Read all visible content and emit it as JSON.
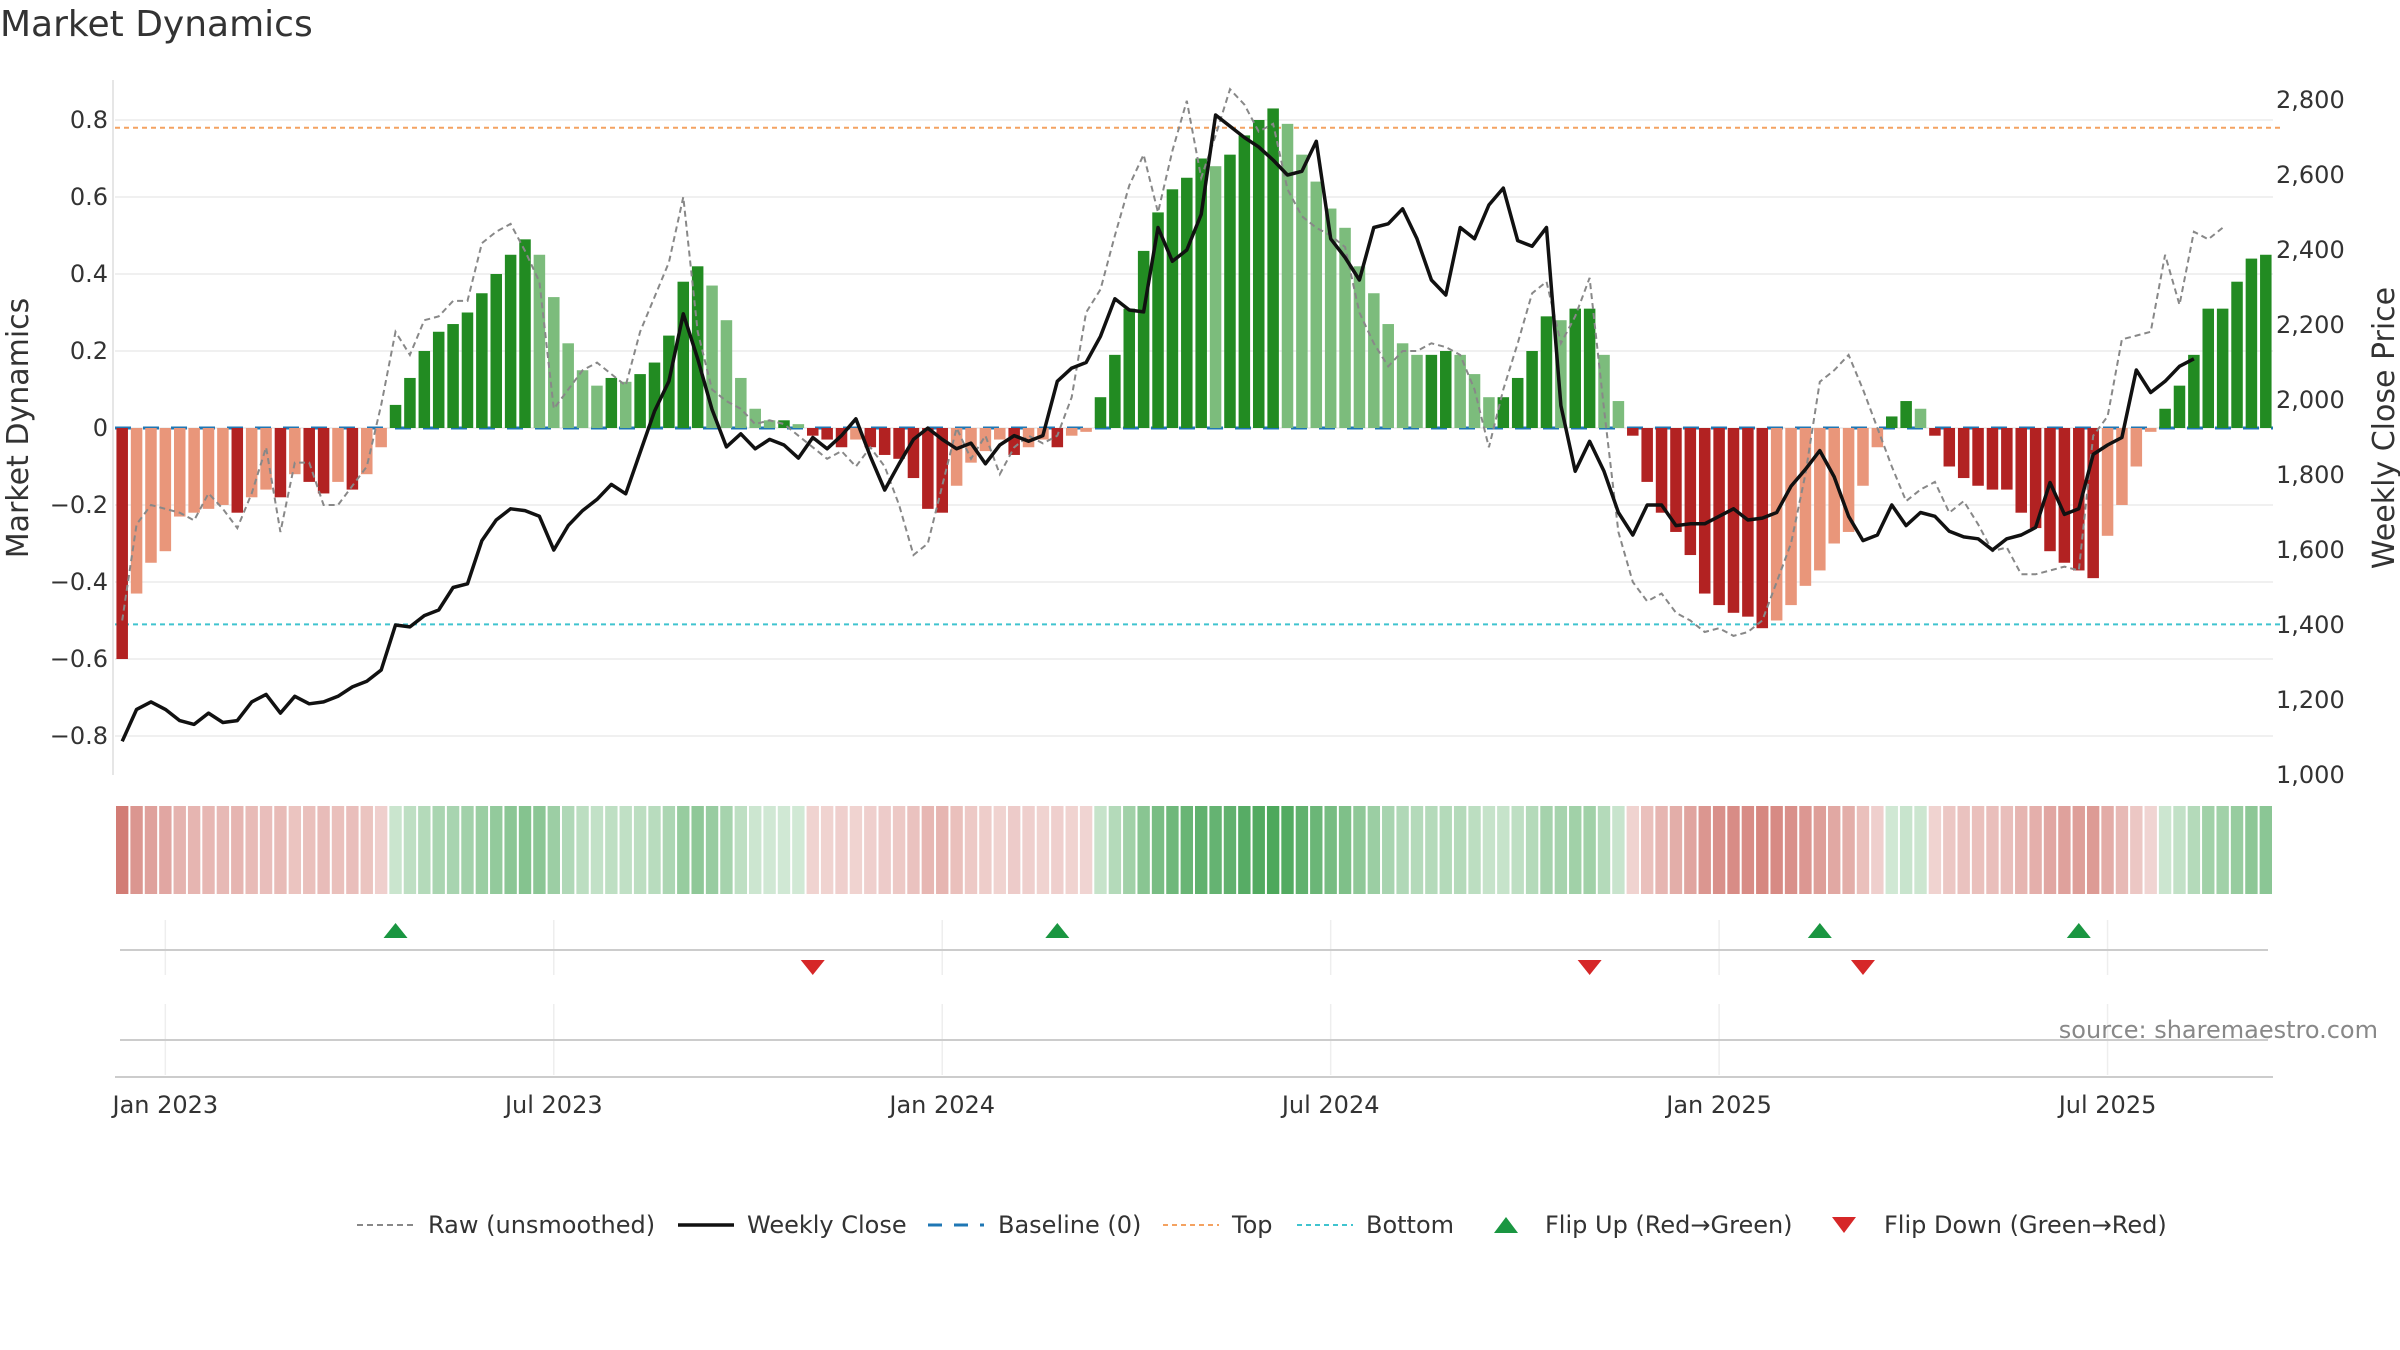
{
  "title": "Market Dynamics",
  "source": "source: sharemaestro.com",
  "chart_data": {
    "type": "bar",
    "title": "Market Dynamics",
    "ylabel_left": "Market Dynamics",
    "ylabel_right": "Weekly Close Price",
    "ylim_left": [
      -0.9,
      0.9
    ],
    "ylim_right": [
      1000,
      2850
    ],
    "left_ticks": [
      "0.8",
      "0.6",
      "0.4",
      "0.2",
      "0",
      "−0.2",
      "−0.4",
      "−0.6",
      "−0.8"
    ],
    "left_tick_values": [
      0.8,
      0.6,
      0.4,
      0.2,
      0,
      -0.2,
      -0.4,
      -0.6,
      -0.8
    ],
    "right_ticks": [
      "2,800",
      "2,600",
      "2,400",
      "2,200",
      "2,000",
      "1,800",
      "1,600",
      "1,400",
      "1,200",
      "1,000"
    ],
    "right_tick_values": [
      2800,
      2600,
      2400,
      2200,
      2000,
      1800,
      1600,
      1400,
      1200,
      1000
    ],
    "x_ticks": [
      "Jan 2023",
      "Jul 2023",
      "Jan 2024",
      "Jul 2024",
      "Jan 2025",
      "Jul 2025"
    ],
    "x_tick_weeks": [
      3,
      30,
      57,
      84,
      111,
      138
    ],
    "top_line": 0.78,
    "bottom_line": -0.51,
    "dynamics": [
      -0.6,
      -0.43,
      -0.35,
      -0.32,
      -0.23,
      -0.22,
      -0.21,
      -0.2,
      -0.22,
      -0.18,
      -0.16,
      -0.18,
      -0.12,
      -0.14,
      -0.17,
      -0.14,
      -0.16,
      -0.12,
      -0.05,
      0.06,
      0.13,
      0.2,
      0.25,
      0.27,
      0.3,
      0.35,
      0.4,
      0.45,
      0.49,
      0.45,
      0.34,
      0.22,
      0.15,
      0.11,
      0.13,
      0.12,
      0.14,
      0.17,
      0.24,
      0.38,
      0.42,
      0.37,
      0.28,
      0.13,
      0.05,
      0.02,
      0.02,
      0.01,
      -0.02,
      -0.03,
      -0.05,
      -0.03,
      -0.05,
      -0.07,
      -0.08,
      -0.13,
      -0.21,
      -0.22,
      -0.15,
      -0.09,
      -0.06,
      -0.03,
      -0.07,
      -0.05,
      -0.03,
      -0.05,
      -0.02,
      -0.01,
      0.08,
      0.19,
      0.31,
      0.46,
      0.56,
      0.62,
      0.65,
      0.7,
      0.68,
      0.71,
      0.76,
      0.8,
      0.83,
      0.79,
      0.71,
      0.64,
      0.57,
      0.52,
      0.42,
      0.35,
      0.27,
      0.22,
      0.19,
      0.19,
      0.2,
      0.19,
      0.14,
      0.08,
      0.08,
      0.13,
      0.2,
      0.29,
      0.28,
      0.31,
      0.31,
      0.19,
      0.07,
      -0.02,
      -0.14,
      -0.22,
      -0.27,
      -0.33,
      -0.43,
      -0.46,
      -0.48,
      -0.49,
      -0.52,
      -0.5,
      -0.46,
      -0.41,
      -0.37,
      -0.3,
      -0.27,
      -0.15,
      -0.05,
      0.03,
      0.07,
      0.05,
      -0.02,
      -0.1,
      -0.13,
      -0.15,
      -0.16,
      -0.16,
      -0.22,
      -0.26,
      -0.32,
      -0.35,
      -0.37,
      -0.39,
      -0.28,
      -0.2,
      -0.1,
      -0.01,
      0.05,
      0.11,
      0.19,
      0.31,
      0.31,
      0.38,
      0.44,
      0.45
    ],
    "raw": [
      -0.5,
      -0.25,
      -0.2,
      -0.21,
      -0.22,
      -0.24,
      -0.17,
      -0.21,
      -0.26,
      -0.17,
      -0.05,
      -0.27,
      -0.09,
      -0.09,
      -0.2,
      -0.2,
      -0.15,
      -0.1,
      0.06,
      0.25,
      0.19,
      0.28,
      0.29,
      0.33,
      0.33,
      0.48,
      0.51,
      0.53,
      0.46,
      0.38,
      0.05,
      0.1,
      0.15,
      0.17,
      0.14,
      0.11,
      0.25,
      0.34,
      0.43,
      0.6,
      0.25,
      0.1,
      0.07,
      0.05,
      0.01,
      0.02,
      0.01,
      -0.02,
      -0.05,
      -0.08,
      -0.06,
      -0.1,
      -0.05,
      -0.1,
      -0.2,
      -0.33,
      -0.3,
      -0.15,
      0.0,
      -0.08,
      -0.02,
      -0.12,
      -0.05,
      -0.02,
      -0.04,
      -0.02,
      0.08,
      0.3,
      0.36,
      0.5,
      0.63,
      0.71,
      0.56,
      0.72,
      0.85,
      0.65,
      0.76,
      0.88,
      0.84,
      0.77,
      0.79,
      0.62,
      0.55,
      0.52,
      0.5,
      0.47,
      0.3,
      0.22,
      0.16,
      0.2,
      0.2,
      0.22,
      0.21,
      0.19,
      0.1,
      -0.05,
      0.1,
      0.22,
      0.35,
      0.38,
      0.22,
      0.29,
      0.39,
      0.05,
      -0.27,
      -0.4,
      -0.45,
      -0.43,
      -0.48,
      -0.5,
      -0.53,
      -0.52,
      -0.54,
      -0.53,
      -0.5,
      -0.4,
      -0.3,
      -0.12,
      0.12,
      0.15,
      0.19,
      0.1,
      0.0,
      -0.1,
      -0.19,
      -0.16,
      -0.14,
      -0.22,
      -0.19,
      -0.25,
      -0.32,
      -0.31,
      -0.38,
      -0.38,
      -0.37,
      -0.36,
      -0.37,
      -0.02,
      0.03,
      0.23,
      0.24,
      0.25,
      0.45,
      0.32,
      0.51,
      0.49,
      0.52
    ],
    "close": [
      1090,
      1175,
      1195,
      1175,
      1145,
      1135,
      1165,
      1140,
      1145,
      1195,
      1215,
      1165,
      1210,
      1190,
      1195,
      1210,
      1235,
      1250,
      1280,
      1400,
      1395,
      1425,
      1440,
      1500,
      1510,
      1625,
      1680,
      1710,
      1705,
      1690,
      1600,
      1665,
      1705,
      1735,
      1775,
      1750,
      1860,
      1970,
      2050,
      2230,
      2110,
      1975,
      1875,
      1910,
      1870,
      1895,
      1880,
      1845,
      1900,
      1870,
      1905,
      1950,
      1850,
      1760,
      1830,
      1895,
      1925,
      1895,
      1870,
      1885,
      1830,
      1880,
      1905,
      1890,
      1905,
      2050,
      2085,
      2100,
      2170,
      2270,
      2240,
      2235,
      2460,
      2370,
      2400,
      2495,
      2760,
      2730,
      2700,
      2675,
      2640,
      2600,
      2610,
      2690,
      2430,
      2380,
      2320,
      2460,
      2470,
      2510,
      2430,
      2320,
      2280,
      2460,
      2430,
      2520,
      2565,
      2425,
      2410,
      2460,
      1985,
      1810,
      1890,
      1810,
      1700,
      1640,
      1720,
      1720,
      1665,
      1670,
      1670,
      1690,
      1710,
      1680,
      1685,
      1700,
      1770,
      1815,
      1865,
      1795,
      1690,
      1625,
      1640,
      1720,
      1665,
      1700,
      1690,
      1650,
      1635,
      1630,
      1600,
      1630,
      1640,
      1660,
      1780,
      1695,
      1710,
      1855,
      1880,
      1900,
      2080,
      2020,
      2050,
      2090,
      2110
    ]
  },
  "legend": {
    "raw": "Raw (unsmoothed)",
    "close": "Weekly Close",
    "baseline": "Baseline (0)",
    "top": "Top",
    "bottom": "Bottom",
    "flip_up": "Flip Up (Red→Green)",
    "flip_down": "Flip Down (Green→Red)"
  },
  "flips_up_weeks": [
    19,
    65,
    118,
    136
  ],
  "flips_down_weeks": [
    48,
    102,
    121
  ],
  "colors": {
    "strong_green": "#228b22",
    "light_green": "#7cbc7c",
    "strong_red": "#b22222",
    "light_red": "#e9967a",
    "close_line": "#111111",
    "raw_line": "#888888",
    "baseline": "#1f77b4",
    "top": "#f4a261",
    "bottom": "#40c4cf",
    "flip_up": "#1a9641",
    "flip_down": "#d62728"
  }
}
